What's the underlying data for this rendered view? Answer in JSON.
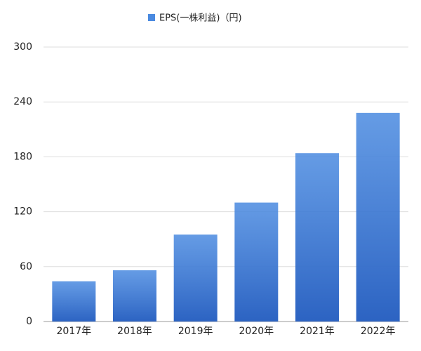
{
  "chart_data": {
    "type": "bar",
    "categories": [
      "2017年",
      "2018年",
      "2019年",
      "2020年",
      "2021年",
      "2022年"
    ],
    "series": [
      {
        "name": "EPS(一株利益)（円)",
        "color": "#4a8ae0",
        "values": [
          44,
          56,
          95,
          130,
          184,
          228
        ]
      }
    ],
    "ylim": [
      0,
      300
    ],
    "yticks": [
      0,
      60,
      120,
      180,
      240,
      300
    ],
    "grid": true,
    "legend": "top"
  }
}
